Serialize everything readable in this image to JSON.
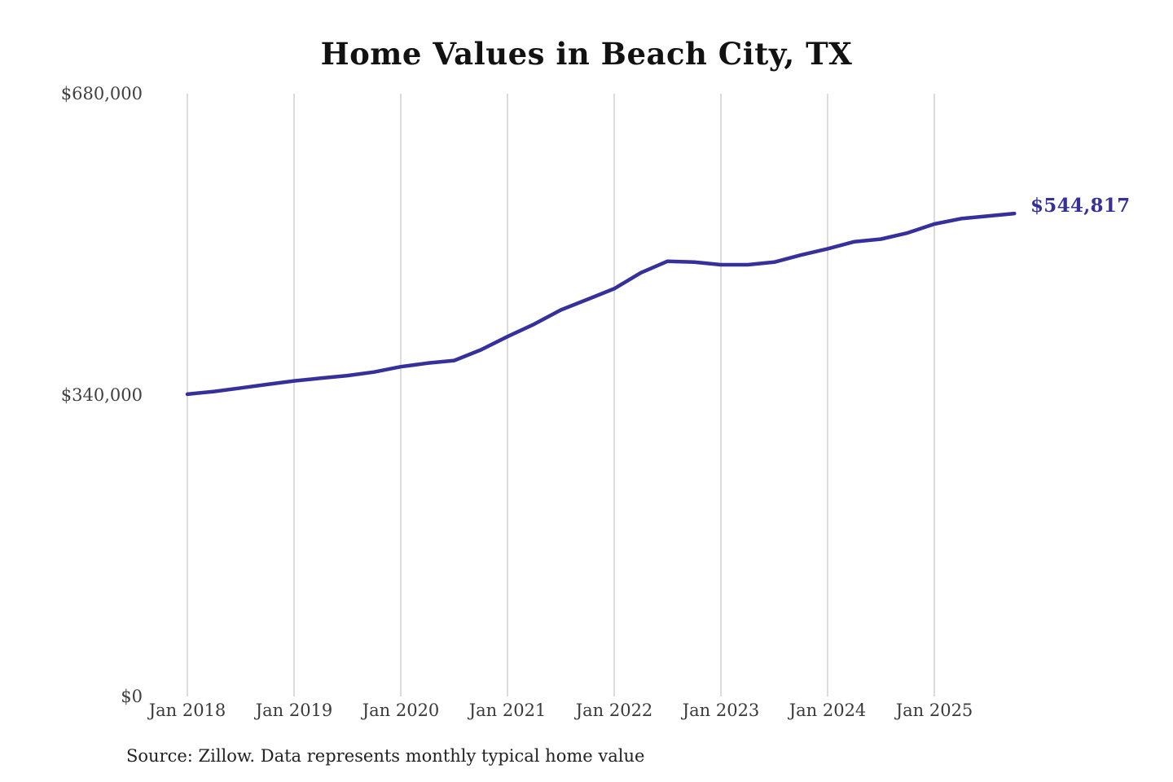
{
  "figure": {
    "title": "Home Values in Beach City, TX",
    "source": "Source: Zillow. Data represents monthly typical home value",
    "current_value_label": "$544,817"
  },
  "chart_data": {
    "type": "line",
    "title": "Home Values in Beach City, TX",
    "xlabel": "",
    "ylabel": "",
    "ylim": [
      0,
      680000
    ],
    "grid": "vertical-only",
    "legend": "none",
    "line_color": "#36309b",
    "grid_color": "#cccccc",
    "axis_label_color": "#3f3f3f",
    "title_color": "#121212",
    "y_ticks": [
      {
        "value": 0,
        "label": "$0"
      },
      {
        "value": 340000,
        "label": "$340,000"
      },
      {
        "value": 680000,
        "label": "$680,000"
      }
    ],
    "x_ticks": [
      {
        "date": "2018-01",
        "label": "Jan 2018"
      },
      {
        "date": "2019-01",
        "label": "Jan 2019"
      },
      {
        "date": "2020-01",
        "label": "Jan 2020"
      },
      {
        "date": "2021-01",
        "label": "Jan 2021"
      },
      {
        "date": "2022-01",
        "label": "Jan 2022"
      },
      {
        "date": "2023-01",
        "label": "Jan 2023"
      },
      {
        "date": "2024-01",
        "label": "Jan 2024"
      },
      {
        "date": "2025-01",
        "label": "Jan 2025"
      }
    ],
    "end_annotation": {
      "label": "$544,817",
      "date": "2025-10",
      "value": 544817
    },
    "series": [
      {
        "name": "Monthly typical home value",
        "points": [
          {
            "date": "2018-01",
            "value": 341000
          },
          {
            "date": "2018-04",
            "value": 344000
          },
          {
            "date": "2018-07",
            "value": 348000
          },
          {
            "date": "2018-10",
            "value": 352000
          },
          {
            "date": "2019-01",
            "value": 356000
          },
          {
            "date": "2019-04",
            "value": 359000
          },
          {
            "date": "2019-07",
            "value": 362000
          },
          {
            "date": "2019-10",
            "value": 366000
          },
          {
            "date": "2020-01",
            "value": 372000
          },
          {
            "date": "2020-04",
            "value": 376000
          },
          {
            "date": "2020-07",
            "value": 379000
          },
          {
            "date": "2020-10",
            "value": 391000
          },
          {
            "date": "2021-01",
            "value": 406000
          },
          {
            "date": "2021-04",
            "value": 420000
          },
          {
            "date": "2021-07",
            "value": 436000
          },
          {
            "date": "2021-10",
            "value": 448000
          },
          {
            "date": "2022-01",
            "value": 460000
          },
          {
            "date": "2022-04",
            "value": 478000
          },
          {
            "date": "2022-07",
            "value": 491000
          },
          {
            "date": "2022-10",
            "value": 490000
          },
          {
            "date": "2023-01",
            "value": 487000
          },
          {
            "date": "2023-04",
            "value": 487000
          },
          {
            "date": "2023-07",
            "value": 490000
          },
          {
            "date": "2023-10",
            "value": 498000
          },
          {
            "date": "2024-01",
            "value": 505000
          },
          {
            "date": "2024-04",
            "value": 513000
          },
          {
            "date": "2024-07",
            "value": 516000
          },
          {
            "date": "2024-10",
            "value": 523000
          },
          {
            "date": "2025-01",
            "value": 533000
          },
          {
            "date": "2025-04",
            "value": 539000
          },
          {
            "date": "2025-07",
            "value": 542000
          },
          {
            "date": "2025-10",
            "value": 544817
          }
        ]
      }
    ]
  }
}
